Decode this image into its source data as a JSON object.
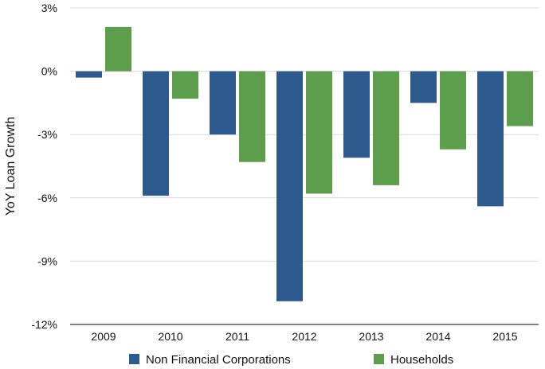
{
  "chart_data": {
    "type": "bar",
    "title": "",
    "xlabel": "",
    "ylabel": "YoY Loan Growth",
    "categories": [
      "2009",
      "2010",
      "2011",
      "2012",
      "2013",
      "2014",
      "2015"
    ],
    "series": [
      {
        "name": "Non Financial Corporations",
        "color": "#2d5a8e",
        "values": [
          -0.3,
          -5.9,
          -3.0,
          -10.9,
          -4.1,
          -1.5,
          -6.4
        ]
      },
      {
        "name": "Households",
        "color": "#5c9e4c",
        "values": [
          2.1,
          -1.3,
          -4.3,
          -5.8,
          -5.4,
          -3.7,
          -2.6
        ]
      }
    ],
    "ylim": [
      -12,
      3
    ],
    "yticks": [
      3,
      0,
      -3,
      -6,
      -9,
      -12
    ],
    "ytick_labels": [
      "3%",
      "0%",
      "-3%",
      "-6%",
      "-9%",
      "-12%"
    ],
    "grid": true,
    "legend_position": "bottom"
  }
}
